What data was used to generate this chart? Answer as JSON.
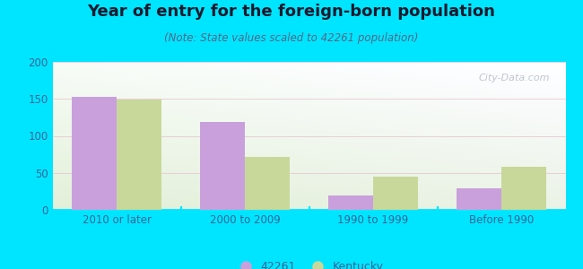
{
  "title": "Year of entry for the foreign-born population",
  "subtitle": "(Note: State values scaled to 42261 population)",
  "categories": [
    "2010 or later",
    "2000 to 2009",
    "1990 to 1999",
    "Before 1990"
  ],
  "values_42261": [
    153,
    119,
    20,
    29
  ],
  "values_kentucky": [
    149,
    72,
    45,
    58
  ],
  "color_42261": "#c9a0dc",
  "color_kentucky": "#c8d89a",
  "background_outer": "#00e5ff",
  "ylim": [
    0,
    200
  ],
  "yticks": [
    0,
    50,
    100,
    150,
    200
  ],
  "bar_width": 0.35,
  "legend_label_42261": "42261",
  "legend_label_kentucky": "Kentucky",
  "watermark": "City-Data.com",
  "title_fontsize": 13,
  "subtitle_fontsize": 8.5,
  "tick_label_color": "#336699",
  "text_color": "#1a1a2e"
}
